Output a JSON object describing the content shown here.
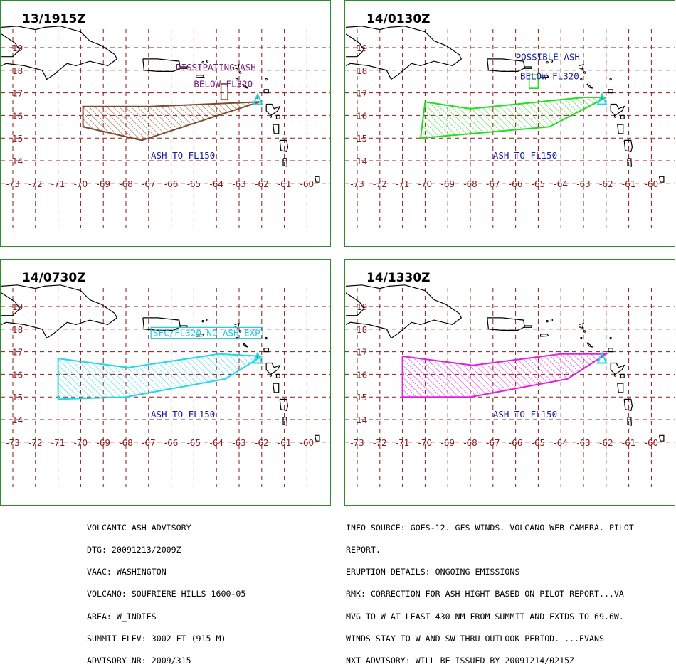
{
  "panels": [
    {
      "title": "13/1915Z",
      "color": "#7a4a2a",
      "polygon": [
        [
          -69.9,
          16.4
        ],
        [
          -66.9,
          16.4
        ],
        [
          -62.1,
          16.6
        ],
        [
          -67.3,
          14.9
        ],
        [
          -69.9,
          15.5
        ]
      ],
      "small_polygon": [
        [
          -63.8,
          16.7
        ],
        [
          -63.5,
          16.7
        ],
        [
          -63.5,
          17.4
        ],
        [
          -63.8,
          17.4
        ]
      ],
      "labels": [
        {
          "text": "DISSIPATING ASH",
          "lon": -65.8,
          "lat": 18.0,
          "color": "#7b1a7b",
          "boxed": false
        },
        {
          "text": "BELOW FL320",
          "lon": -65.0,
          "lat": 17.25,
          "color": "#7b1a7b",
          "boxed": false
        },
        {
          "text": "ASH TO FL150",
          "lon": -66.9,
          "lat": 14.1,
          "color": "#1a1aa0",
          "boxed": false
        }
      ]
    },
    {
      "title": "14/0130Z",
      "color": "#22dd22",
      "polygon": [
        [
          -70.0,
          16.6
        ],
        [
          -68.0,
          16.3
        ],
        [
          -63.0,
          16.8
        ],
        [
          -62.0,
          16.8
        ],
        [
          -64.5,
          15.5
        ],
        [
          -70.2,
          15.0
        ]
      ],
      "small_polygon": [
        [
          -65.4,
          17.2
        ],
        [
          -65.0,
          17.2
        ],
        [
          -65.0,
          17.8
        ],
        [
          -65.4,
          17.8
        ]
      ],
      "labels": [
        {
          "text": "POSSIBLE ASH",
          "lon": -66.0,
          "lat": 18.45,
          "color": "#1a1aa0",
          "boxed": false
        },
        {
          "text": "BELOW FL320",
          "lon": -65.8,
          "lat": 17.6,
          "color": "#1a1aa0",
          "boxed": false
        },
        {
          "text": "ASH TO FL150",
          "lon": -67.0,
          "lat": 14.1,
          "color": "#1a1aa0",
          "boxed": false
        }
      ]
    },
    {
      "title": "14/0730Z",
      "color": "#22d8e8",
      "polygon": [
        [
          -71.0,
          16.7
        ],
        [
          -67.9,
          16.3
        ],
        [
          -63.9,
          16.9
        ],
        [
          -62.0,
          16.8
        ],
        [
          -63.6,
          15.8
        ],
        [
          -68.0,
          15.0
        ],
        [
          -71.0,
          14.9
        ]
      ],
      "small_polygon": null,
      "labels": [
        {
          "text": "SFC/FL320 NO ASH EXP",
          "lon": -66.8,
          "lat": 17.7,
          "color": "#22c8d8",
          "boxed": true
        },
        {
          "text": "ASH TO FL150",
          "lon": -66.9,
          "lat": 14.1,
          "color": "#1a1aa0",
          "boxed": false
        }
      ]
    },
    {
      "title": "14/1330Z",
      "color": "#dd22dd",
      "polygon": [
        [
          -71.0,
          16.8
        ],
        [
          -67.9,
          16.4
        ],
        [
          -64.0,
          16.9
        ],
        [
          -62.0,
          16.9
        ],
        [
          -63.7,
          15.8
        ],
        [
          -68.0,
          15.0
        ],
        [
          -71.0,
          15.0
        ]
      ],
      "small_polygon": null,
      "labels": [
        {
          "text": "ASH TO FL150",
          "lon": -67.0,
          "lat": 14.1,
          "color": "#1a1aa0",
          "boxed": false
        }
      ]
    }
  ],
  "map": {
    "lon_ticks": [
      "-73",
      "-72",
      "-71",
      "-70",
      "-69",
      "-68",
      "-67",
      "-66",
      "-65",
      "-64",
      "-63",
      "-62",
      "-61",
      "-60"
    ],
    "lat_ticks": [
      "19",
      "18",
      "17",
      "16",
      "15",
      "14"
    ],
    "grid_color": "#8b1a1a",
    "tick_label_color": "#8b1a1a",
    "coast_color": "#000000",
    "volcano_color": "#22d8e8",
    "volcano": [
      -62.18,
      16.72
    ]
  },
  "advisory_left": [
    "VOLCANIC ASH ADVISORY",
    "DTG: 20091213/2009Z",
    "VAAC: WASHINGTON",
    "VOLCANO: SOUFRIERE HILLS 1600-05",
    "AREA: W_INDIES",
    "SUMMIT ELEV: 3002 FT (915 M)",
    "ADVISORY NR: 2009/315"
  ],
  "advisory_right": [
    "INFO SOURCE: GOES-12. GFS WINDS. VOLCANO WEB CAMERA. PILOT",
    "REPORT.",
    "ERUPTION DETAILS: ONGOING EMISSIONS",
    "RMK: CORRECTION FOR ASH HIGHT BASED ON PILOT REPORT...VA",
    "MVG TO W AT LEAST 430 NM FROM SUMMIT AND EXTDS TO 69.6W.",
    "WINDS STAY TO W AND SW THRU OUTLOOK PERIOD. ...EVANS",
    "NXT ADVISORY: WILL BE ISSUED BY 20091214/0215Z"
  ]
}
